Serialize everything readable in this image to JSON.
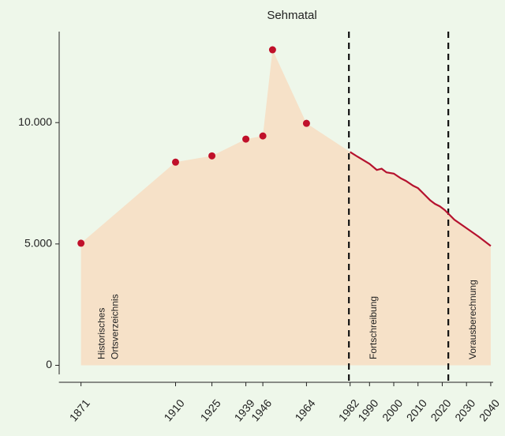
{
  "chart_data": {
    "type": "area",
    "title": "Sehmatal",
    "xlim": [
      1862,
      2041
    ],
    "ylim": [
      -700,
      13750
    ],
    "xticks": [
      1871,
      1910,
      1925,
      1939,
      1946,
      1964,
      1982,
      1990,
      2000,
      2010,
      2020,
      2030,
      2040
    ],
    "yticks": [
      0,
      {
        "value": 5000,
        "label": "5.000"
      },
      {
        "value": 10000,
        "label": "10.000"
      }
    ],
    "area_color": "#f6e1c8",
    "series": [
      {
        "name": "Historisches Ortsverzeichnis",
        "kind": "points",
        "color": "#c0102a",
        "x": [
          1871,
          1910,
          1925,
          1939,
          1946,
          1950,
          1964
        ],
        "values": [
          5030,
          8370,
          8630,
          9320,
          9450,
          13000,
          9970
        ]
      },
      {
        "name": "Fortschreibung",
        "kind": "line",
        "color": "#b5122e",
        "x": [
          1982,
          1985,
          1990,
          1993,
          1995,
          1997,
          2000,
          2003,
          2005,
          2008,
          2010,
          2013,
          2015,
          2017,
          2019,
          2021,
          2023,
          2025,
          2030,
          2035,
          2040
        ],
        "values": [
          8790,
          8600,
          8300,
          8050,
          8100,
          7950,
          7900,
          7700,
          7600,
          7400,
          7300,
          7000,
          6800,
          6650,
          6550,
          6400,
          6200,
          6000,
          5650,
          5300,
          4920
        ]
      }
    ],
    "vlines": [
      1981.5,
      2022.5
    ],
    "annotations": [
      [
        "Historisches",
        "Ortsverzeichnis"
      ],
      [
        "Fortschreibung"
      ],
      [
        "Vorausberechnung"
      ]
    ]
  }
}
